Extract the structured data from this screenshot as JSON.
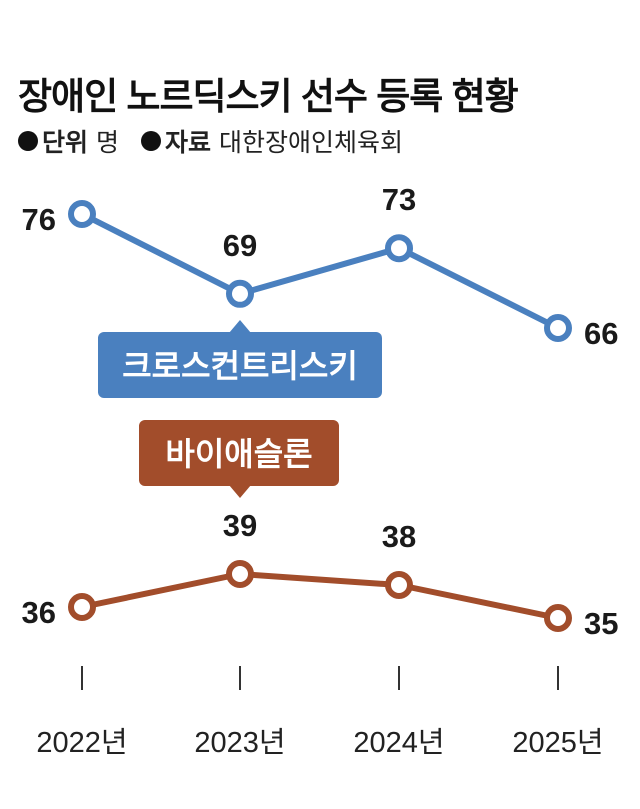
{
  "title": "장애인 노르딕스키 선수 등록 현황",
  "meta": {
    "unit_key": "단위",
    "unit_value": "명",
    "source_key": "자료",
    "source_value": "대한장애인체육회"
  },
  "colors": {
    "series1": "#4a80bf",
    "series2": "#a24d2b"
  },
  "chart_data": {
    "type": "line",
    "x": [
      "2022년",
      "2023년",
      "2024년",
      "2025년"
    ],
    "series": [
      {
        "name": "크로스컨트리스키",
        "values": [
          76,
          69,
          73,
          66
        ],
        "color": "#4a80bf"
      },
      {
        "name": "바이애슬론",
        "values": [
          36,
          39,
          38,
          35
        ],
        "color": "#a24d2b"
      }
    ],
    "grid": false
  }
}
